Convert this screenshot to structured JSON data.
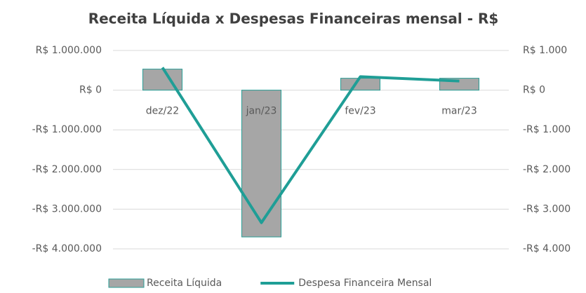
{
  "chart_data": {
    "type": "bar_line",
    "title": "Receita Líquida x Despesas Financeiras mensal - R$",
    "categories": [
      "dez/22",
      "jan/23",
      "fev/23",
      "mar/23"
    ],
    "series": [
      {
        "name": "Receita Líquida",
        "type": "bar",
        "color": "#a6a6a6",
        "edge_color": "#2a9d95",
        "values": [
          530000,
          -3700000,
          300000,
          300000
        ]
      },
      {
        "name": "Despesa Financeira Mensal",
        "type": "line",
        "axis": "y2",
        "color": "#1f9e96",
        "values": [
          570,
          -3340,
          340,
          230
        ]
      }
    ],
    "ylim": [
      -4000000,
      1000000
    ],
    "yticks": [
      {
        "value": 1000000,
        "label": "R$ 1.000.000"
      },
      {
        "value": 0,
        "label": "R$ 0"
      },
      {
        "value": -1000000,
        "label": "-R$ 1.000.000"
      },
      {
        "value": -2000000,
        "label": "-R$ 2.000.000"
      },
      {
        "value": -3000000,
        "label": "-R$ 3.000.000"
      },
      {
        "value": -4000000,
        "label": "-R$ 4.000.000"
      }
    ],
    "y2lim": [
      -4000,
      1000
    ],
    "y2ticks": [
      {
        "value": 1000,
        "label": "R$ 1.000"
      },
      {
        "value": 0,
        "label": "R$ 0"
      },
      {
        "value": -1000,
        "label": "-R$ 1.000"
      },
      {
        "value": -2000,
        "label": "-R$ 2.000"
      },
      {
        "value": -3000,
        "label": "-R$ 3.000"
      },
      {
        "value": -4000,
        "label": "-R$ 4.000"
      }
    ],
    "grid": true
  }
}
